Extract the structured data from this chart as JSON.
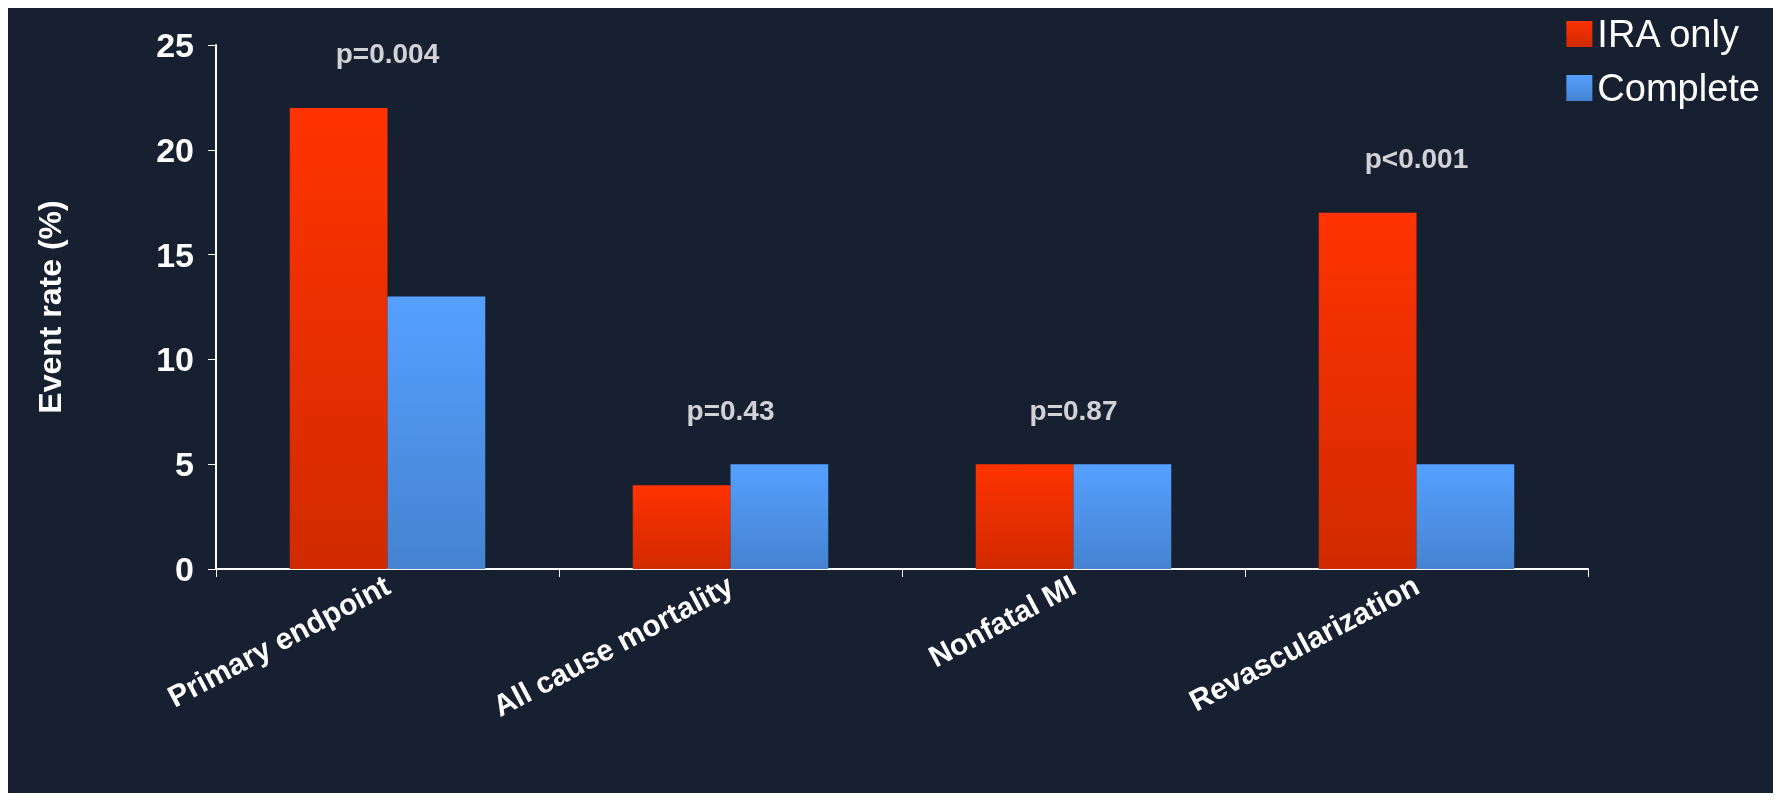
{
  "chart_data": {
    "type": "bar",
    "ylabel": "Event rate (%)",
    "categories": [
      "Primary endpoint",
      "All cause mortality",
      "Nonfatal MI",
      "Revascularization"
    ],
    "series": [
      {
        "name": "IRA only",
        "color": "#ff3300",
        "values": [
          22,
          4,
          5,
          17
        ]
      },
      {
        "name": "Complete",
        "color": "#55a0ff",
        "values": [
          13,
          5,
          5,
          5
        ]
      }
    ],
    "annotations": [
      "p=0.004",
      "p=0.43",
      "p=0.87",
      "p<0.001"
    ],
    "ylim": [
      0,
      25
    ],
    "yticks": [
      0,
      5,
      10,
      15,
      20,
      25
    ],
    "grid": false,
    "legend": "top right"
  }
}
